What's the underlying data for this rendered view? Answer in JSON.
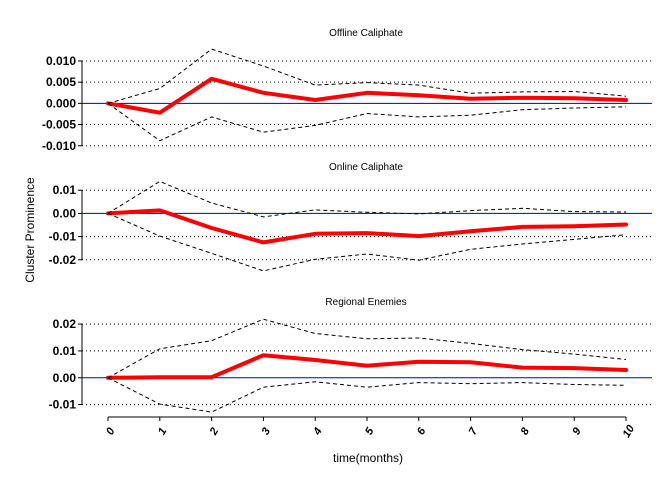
{
  "figure": {
    "ylabel": "Cluster Prominence",
    "xlabel": "time(months)",
    "colors": {
      "irf": "#ff0000",
      "zero_line": "#0000cc",
      "band": "#000000",
      "grid": "#000000"
    }
  },
  "chart_data": [
    {
      "type": "line",
      "title": "Offline Caliphate",
      "x": [
        0,
        1,
        2,
        3,
        4,
        5,
        6,
        7,
        8,
        9,
        10
      ],
      "ylim": [
        -0.011,
        0.014
      ],
      "yticks": [
        0.01,
        0.005,
        0.0,
        -0.005,
        -0.01
      ],
      "ytick_labels": [
        "0.010",
        "0.005",
        "0.000",
        "-0.005",
        "-0.010"
      ],
      "grid": true,
      "series": [
        {
          "role": "irf",
          "values": [
            0.0,
            -0.0022,
            0.0058,
            0.0025,
            0.0008,
            0.0025,
            0.0019,
            0.0011,
            0.0013,
            0.0012,
            0.0008
          ]
        },
        {
          "role": "upper",
          "values": [
            0.0,
            0.0035,
            0.0128,
            0.0088,
            0.0043,
            0.0049,
            0.0043,
            0.0024,
            0.0027,
            0.0028,
            0.0017
          ]
        },
        {
          "role": "lower",
          "values": [
            0.0,
            -0.0088,
            -0.0032,
            -0.0068,
            -0.0052,
            -0.0024,
            -0.0032,
            -0.0028,
            -0.0015,
            -0.0011,
            -0.0008
          ]
        }
      ]
    },
    {
      "type": "line",
      "title": "Online Caliphate",
      "x": [
        0,
        1,
        2,
        3,
        4,
        5,
        6,
        7,
        8,
        9,
        10
      ],
      "ylim": [
        -0.027,
        0.017
      ],
      "yticks": [
        0.01,
        0.0,
        -0.01,
        -0.02
      ],
      "ytick_labels": [
        "0.01",
        "0.00",
        "-0.01",
        "-0.02"
      ],
      "grid": true,
      "series": [
        {
          "role": "irf",
          "values": [
            0.0,
            0.0013,
            -0.0063,
            -0.0125,
            -0.0088,
            -0.0085,
            -0.0098,
            -0.0077,
            -0.0058,
            -0.0055,
            -0.0048
          ]
        },
        {
          "role": "upper",
          "values": [
            0.0,
            0.0138,
            0.0045,
            -0.0015,
            0.0015,
            0.0005,
            -0.0002,
            0.0012,
            0.0022,
            0.0008,
            0.0006
          ]
        },
        {
          "role": "lower",
          "values": [
            0.0,
            -0.0098,
            -0.0172,
            -0.0248,
            -0.0198,
            -0.0175,
            -0.0202,
            -0.0155,
            -0.0132,
            -0.0112,
            -0.0092
          ]
        }
      ]
    },
    {
      "type": "line",
      "title": "Regional Enemies",
      "x": [
        0,
        1,
        2,
        3,
        4,
        5,
        6,
        7,
        8,
        9,
        10
      ],
      "ylim": [
        -0.0135,
        0.0245
      ],
      "yticks": [
        0.02,
        0.01,
        0.0,
        -0.01
      ],
      "ytick_labels": [
        "0.02",
        "0.01",
        "0.00",
        "-0.01"
      ],
      "grid": true,
      "series": [
        {
          "role": "irf",
          "values": [
            0.0,
            0.0002,
            0.0002,
            0.0084,
            0.0066,
            0.0045,
            0.006,
            0.0058,
            0.0038,
            0.0036,
            0.0029
          ]
        },
        {
          "role": "upper",
          "values": [
            0.0,
            0.0108,
            0.0138,
            0.0218,
            0.0165,
            0.0145,
            0.0148,
            0.0128,
            0.0105,
            0.0088,
            0.0068
          ]
        },
        {
          "role": "lower",
          "values": [
            0.0,
            -0.0098,
            -0.0128,
            -0.0035,
            -0.0015,
            -0.0035,
            -0.0018,
            -0.0022,
            -0.0018,
            -0.0025,
            -0.0028
          ]
        }
      ]
    }
  ]
}
